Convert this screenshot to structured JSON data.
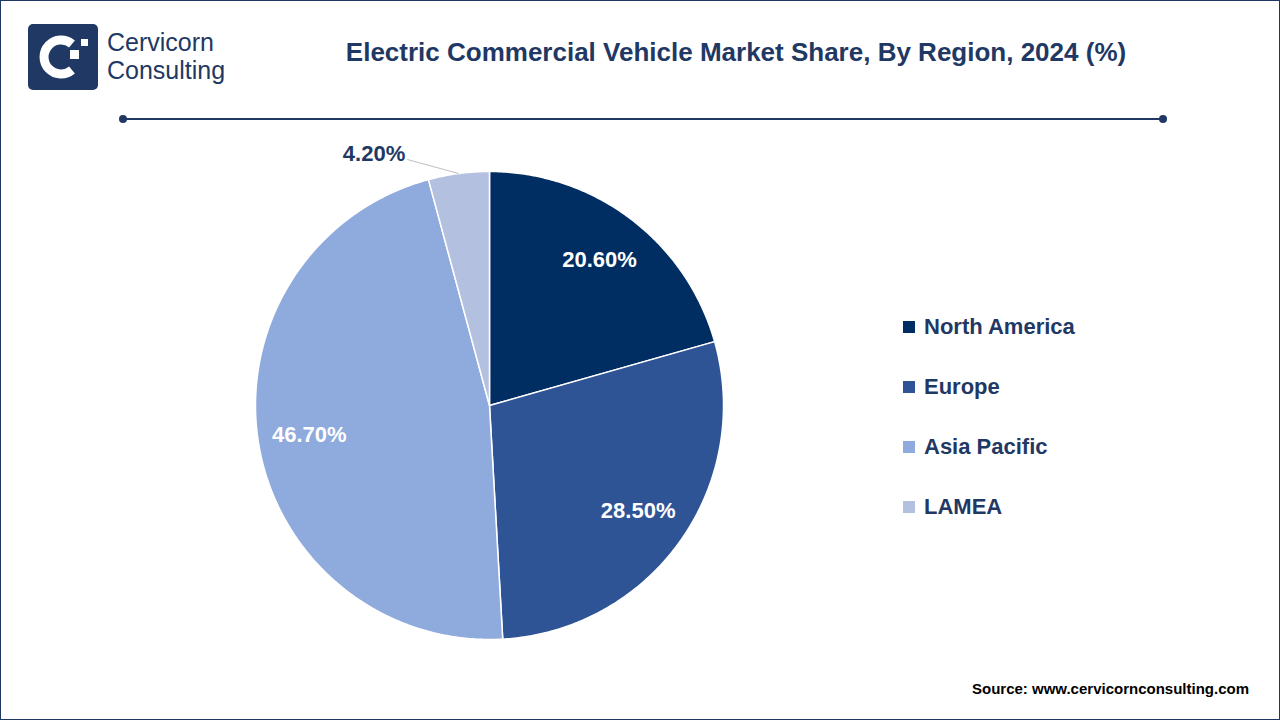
{
  "chart_data": {
    "type": "pie",
    "title": "Electric Commercial Vehicle Market Share, By Region, 2024 (%)",
    "categories": [
      "North America",
      "Europe",
      "Asia Pacific",
      "LAMEA"
    ],
    "values": [
      20.6,
      28.5,
      46.7,
      4.2
    ],
    "value_labels": [
      "20.60%",
      "28.50%",
      "46.70%",
      "4.20%"
    ],
    "colors": [
      "#002d62",
      "#2f5496",
      "#8faadc",
      "#b4c0e0"
    ],
    "data_labels": true,
    "legend": "right",
    "logo": [
      "Cervicorn",
      "Consulting"
    ],
    "source": "Source: www.cervicornconsulting.com"
  }
}
